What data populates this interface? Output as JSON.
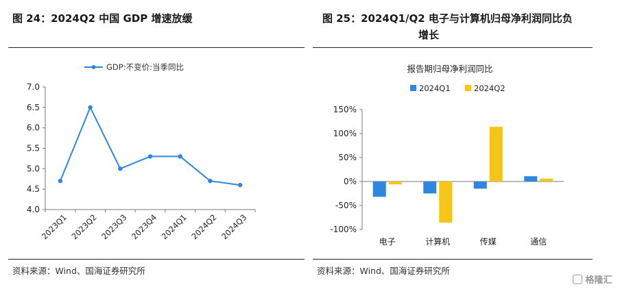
{
  "left": {
    "title": "图 24：2024Q2 中国 GDP 增速放缓",
    "source": "资料来源：Wind、国海证券研究所"
  },
  "right": {
    "title_line1": "图 25：2024Q1/Q2 电子与计算机归母净利润同比负",
    "title_line2": "增长",
    "source": "资料来源：Wind、国海证券研究所"
  },
  "watermark": "格隆汇",
  "chart_data": [
    {
      "type": "line",
      "title": "",
      "legend": "GDP:不变价:当季同比",
      "categories": [
        "2023Q1",
        "2023Q2",
        "2023Q3",
        "2023Q4",
        "2024Q1",
        "2024Q2",
        "2024Q3"
      ],
      "series": [
        {
          "name": "GDP:不变价:当季同比",
          "values": [
            4.7,
            6.5,
            5.0,
            5.3,
            5.3,
            4.7,
            4.6
          ]
        }
      ],
      "ylim": [
        4.0,
        7.0
      ],
      "yticks": [
        "4.0",
        "4.5",
        "5.0",
        "5.5",
        "6.0",
        "6.5",
        "7.0"
      ],
      "color": "#2E86DE",
      "legend_position": "top"
    },
    {
      "type": "bar",
      "title": "报告期归母净利润同比",
      "categories": [
        "电子",
        "计算机",
        "传媒",
        "通信"
      ],
      "series": [
        {
          "name": "2024Q1",
          "values": [
            -32,
            -25,
            -15,
            11
          ],
          "color": "#2E86DE"
        },
        {
          "name": "2024Q2",
          "values": [
            -6,
            -86,
            114,
            6
          ],
          "color": "#F5C518"
        }
      ],
      "ylim": [
        -100,
        150
      ],
      "yticks": [
        "-100%",
        "-50%",
        "0%",
        "50%",
        "100%",
        "150%"
      ],
      "legend_position": "top"
    }
  ]
}
